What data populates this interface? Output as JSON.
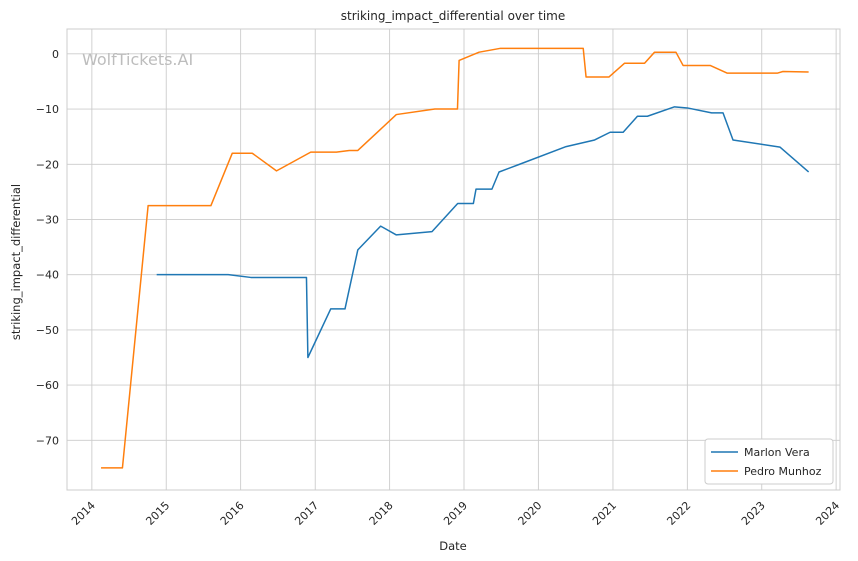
{
  "chart_data": {
    "type": "line",
    "title": "striking_impact_differential over time",
    "xlabel": "Date",
    "ylabel": "striking_impact_differential",
    "watermark": "WolfTickets.AI",
    "xlim": [
      "2013-09-01",
      "2024-01-20"
    ],
    "ylim": [
      -79,
      4.5
    ],
    "x_ticks": [
      "2014",
      "2015",
      "2016",
      "2017",
      "2018",
      "2019",
      "2020",
      "2021",
      "2022",
      "2023",
      "2024"
    ],
    "y_ticks": [
      0,
      -10,
      -20,
      -30,
      -40,
      -50,
      -60,
      -70
    ],
    "y_tick_labels": [
      "0",
      "−10",
      "−20",
      "−30",
      "−40",
      "−50",
      "−60",
      "−70"
    ],
    "grid": true,
    "legend_position": "bottom-right",
    "series": [
      {
        "name": "Marlon Vera",
        "color": "#1f77b4",
        "points": [
          [
            "2014-11-15",
            -40
          ],
          [
            "2015-11-01",
            -40
          ],
          [
            "2016-02-20",
            -40.5
          ],
          [
            "2016-11-19",
            -40.5
          ],
          [
            "2016-11-26",
            -55
          ],
          [
            "2017-03-18",
            -46.2
          ],
          [
            "2017-05-27",
            -46.2
          ],
          [
            "2017-07-29",
            -35.5
          ],
          [
            "2017-11-18",
            -31.2
          ],
          [
            "2018-02-03",
            -32.8
          ],
          [
            "2018-07-28",
            -32.2
          ],
          [
            "2018-12-01",
            -27.1
          ],
          [
            "2019-02-16",
            -27.1
          ],
          [
            "2019-03-01",
            -24.5
          ],
          [
            "2019-05-18",
            -24.5
          ],
          [
            "2019-06-22",
            -21.4
          ],
          [
            "2019-10-01",
            -20
          ],
          [
            "2020-05-16",
            -16.8
          ],
          [
            "2020-10-03",
            -15.6
          ],
          [
            "2020-12-18",
            -14.2
          ],
          [
            "2021-02-20",
            -14.2
          ],
          [
            "2021-05-01",
            -11.3
          ],
          [
            "2021-06-19",
            -11.3
          ],
          [
            "2021-10-30",
            -9.6
          ],
          [
            "2022-01-01",
            -9.8
          ],
          [
            "2022-04-30",
            -10.7
          ],
          [
            "2022-06-25",
            -10.7
          ],
          [
            "2022-08-13",
            -15.6
          ],
          [
            "2023-04-01",
            -16.9
          ],
          [
            "2023-08-19",
            -21.4
          ]
        ]
      },
      {
        "name": "Pedro Munhoz",
        "color": "#ff7f0e",
        "points": [
          [
            "2014-02-15",
            -75
          ],
          [
            "2014-05-31",
            -75
          ],
          [
            "2014-10-04",
            -27.5
          ],
          [
            "2015-08-08",
            -27.5
          ],
          [
            "2015-11-21",
            -18
          ],
          [
            "2016-02-27",
            -18
          ],
          [
            "2016-06-25",
            -21.2
          ],
          [
            "2016-12-10",
            -17.8
          ],
          [
            "2017-04-15",
            -17.8
          ],
          [
            "2017-06-17",
            -17.5
          ],
          [
            "2017-07-29",
            -17.5
          ],
          [
            "2018-02-03",
            -11
          ],
          [
            "2018-08-11",
            -10
          ],
          [
            "2018-11-30",
            -10
          ],
          [
            "2018-12-08",
            -1.2
          ],
          [
            "2019-03-16",
            0.3
          ],
          [
            "2019-06-29",
            1
          ],
          [
            "2020-08-08",
            1
          ],
          [
            "2020-08-22",
            -4.2
          ],
          [
            "2020-12-12",
            -4.2
          ],
          [
            "2021-02-27",
            -1.7
          ],
          [
            "2021-06-05",
            -1.7
          ],
          [
            "2021-07-24",
            0.3
          ],
          [
            "2021-11-06",
            0.3
          ],
          [
            "2021-12-11",
            -2.1
          ],
          [
            "2022-04-23",
            -2.1
          ],
          [
            "2022-07-16",
            -3.5
          ],
          [
            "2023-03-18",
            -3.5
          ],
          [
            "2023-04-15",
            -3.2
          ],
          [
            "2023-08-19",
            -3.3
          ]
        ]
      }
    ]
  }
}
